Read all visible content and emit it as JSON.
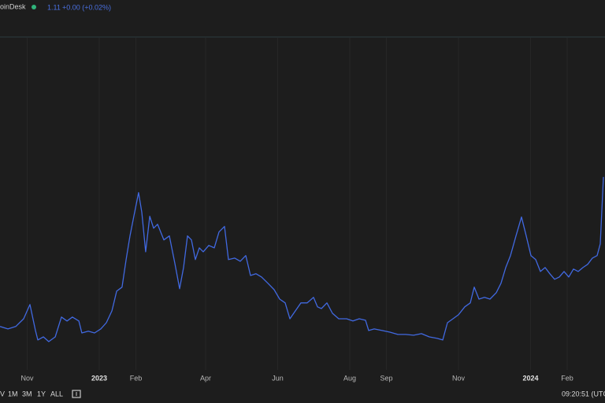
{
  "header": {
    "source": "oinDesk",
    "price": "1.11",
    "change": "+0.00 (+0.02%)"
  },
  "chart_data": {
    "type": "line",
    "series": [
      {
        "color": "#4169e1",
        "x": [
          0,
          6.7,
          13.3,
          20,
          25.3,
          30,
          32,
          36.7,
          41.3,
          46.7,
          52,
          56.7,
          61.3,
          66.7,
          69.3,
          74.7,
          80,
          85.3,
          90,
          94.7,
          98.7,
          103.3,
          106.7,
          110,
          113.3,
          117.3,
          120,
          123.3,
          126.7,
          130,
          133.3,
          138.7,
          143.3,
          148,
          152,
          155.3,
          158.7,
          162,
          165.3,
          168.7,
          172,
          176.7,
          181.3,
          185.3,
          190,
          193.3,
          198.7,
          203.3,
          208,
          212,
          216.7,
          221.3,
          226.7,
          232,
          236.7,
          241.3,
          245.3,
          250,
          254.7,
          260,
          265.3,
          268.7,
          272,
          276.7,
          281.3,
          286.7,
          293.3,
          298.7,
          304,
          309.3,
          312,
          316.7,
          323.3,
          330,
          336.7,
          343.3,
          350,
          356.7,
          363.3,
          370,
          374.7,
          378.7,
          383.3,
          388,
          393.3,
          398,
          401.3,
          405.3,
          410,
          414.7,
          420,
          424,
          428,
          432,
          436.7,
          441.3,
          445.3,
          449.3,
          453.3,
          457.3,
          461.3,
          465.3,
          469.3,
          473.3,
          477.3,
          481.3,
          485.3,
          489.3,
          493.3,
          497.3,
          501.3,
          505.3,
          508,
          510.7
        ],
        "values": [
          0.313,
          0.3,
          0.313,
          0.354,
          0.429,
          0.292,
          0.242,
          0.258,
          0.233,
          0.258,
          0.363,
          0.342,
          0.363,
          0.342,
          0.279,
          0.288,
          0.279,
          0.3,
          0.333,
          0.396,
          0.5,
          0.521,
          0.667,
          0.792,
          0.896,
          1.021,
          0.917,
          0.708,
          0.896,
          0.833,
          0.854,
          0.771,
          0.792,
          0.646,
          0.513,
          0.625,
          0.792,
          0.771,
          0.667,
          0.729,
          0.708,
          0.742,
          0.729,
          0.813,
          0.842,
          0.667,
          0.675,
          0.658,
          0.688,
          0.583,
          0.592,
          0.575,
          0.542,
          0.508,
          0.458,
          0.438,
          0.354,
          0.396,
          0.438,
          0.438,
          0.467,
          0.417,
          0.408,
          0.438,
          0.383,
          0.354,
          0.354,
          0.342,
          0.354,
          0.346,
          0.292,
          0.3,
          0.292,
          0.283,
          0.271,
          0.271,
          0.267,
          0.275,
          0.258,
          0.25,
          0.242,
          0.333,
          0.354,
          0.375,
          0.417,
          0.438,
          0.521,
          0.458,
          0.467,
          0.458,
          0.492,
          0.542,
          0.625,
          0.688,
          0.792,
          0.892,
          0.792,
          0.688,
          0.667,
          0.604,
          0.625,
          0.592,
          0.563,
          0.575,
          0.604,
          0.575,
          0.617,
          0.604,
          0.625,
          0.642,
          0.675,
          0.688,
          0.75,
          1.104
        ]
      }
    ],
    "xlim": [
      0,
      512
    ],
    "ylim": [
      0,
      1.84
    ],
    "xticks": [
      {
        "value": 23,
        "label": "Nov"
      },
      {
        "value": 84,
        "label": "2023"
      },
      {
        "value": 115,
        "label": "Feb"
      },
      {
        "value": 174,
        "label": "Apr"
      },
      {
        "value": 235,
        "label": "Jun"
      },
      {
        "value": 296,
        "label": "Aug"
      },
      {
        "value": 327,
        "label": "Sep"
      },
      {
        "value": 388,
        "label": "Nov"
      },
      {
        "value": 449,
        "label": "2024"
      },
      {
        "value": 480,
        "label": "Feb"
      }
    ],
    "grid": true
  },
  "footer": {
    "ranges": [
      "V",
      "1M",
      "3M",
      "1Y",
      "ALL"
    ],
    "time": "09:20:51 (UTC"
  }
}
